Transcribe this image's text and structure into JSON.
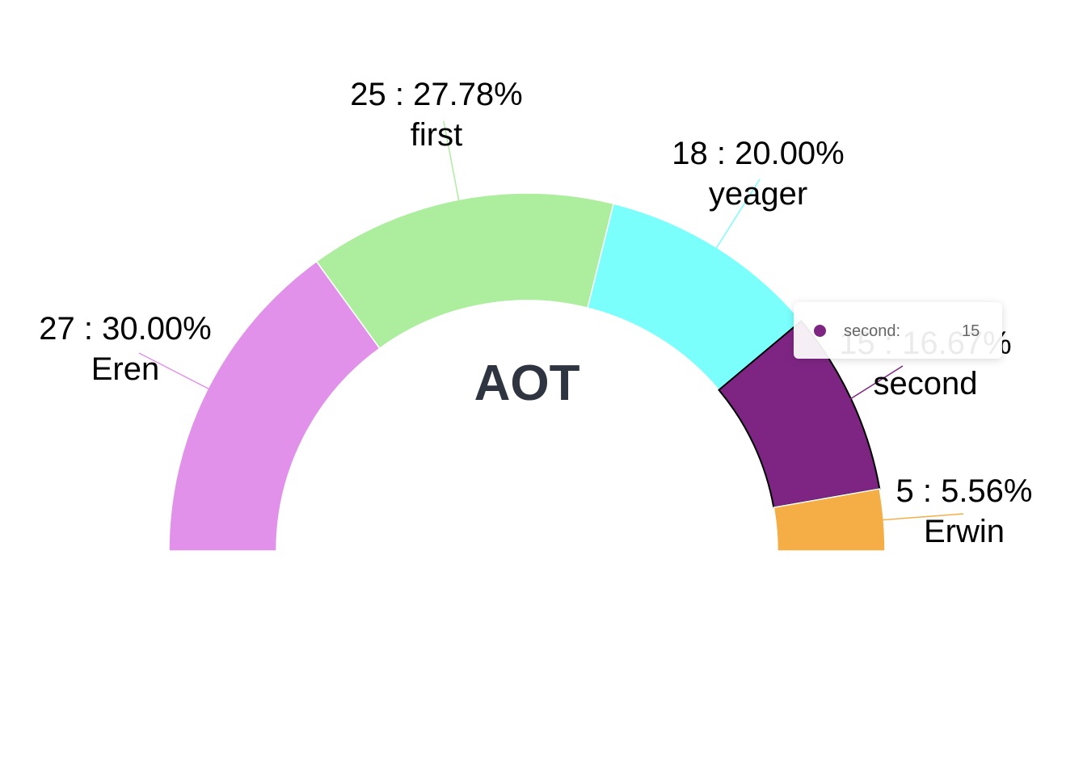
{
  "chart_data": {
    "type": "pie",
    "style": "half-donut",
    "center_label": "AOT",
    "slices": [
      {
        "name": "Eren",
        "value": 27,
        "percent": "30.00%",
        "color": "#e191e9"
      },
      {
        "name": "first",
        "value": 25,
        "percent": "27.78%",
        "color": "#acee9e"
      },
      {
        "name": "yeager",
        "value": 18,
        "percent": "20.00%",
        "color": "#7afffc"
      },
      {
        "name": "second",
        "value": 15,
        "percent": "16.67%",
        "color": "#7e2584"
      },
      {
        "name": "Erwin",
        "value": 5,
        "percent": "5.56%",
        "color": "#f4ae45"
      }
    ],
    "highlighted": "second",
    "tooltip": {
      "name": "second:",
      "value": "15"
    }
  }
}
